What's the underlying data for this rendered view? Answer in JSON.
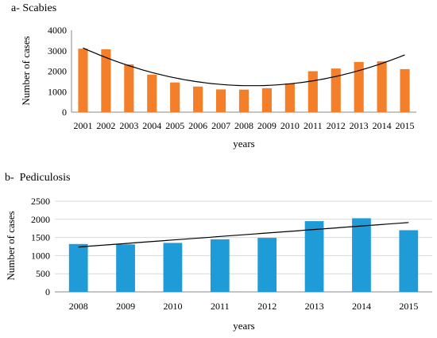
{
  "chart_data": [
    {
      "type": "bar",
      "title": "a- Scabies",
      "xlabel": "years",
      "ylabel": "Number of cases",
      "categories": [
        "2001",
        "2002",
        "2003",
        "2004",
        "2005",
        "2006",
        "2007",
        "2008",
        "2009",
        "2010",
        "2011",
        "2012",
        "2013",
        "2014",
        "2015"
      ],
      "values": [
        3100,
        3070,
        2330,
        1830,
        1450,
        1250,
        1110,
        1100,
        1170,
        1400,
        2000,
        2130,
        2450,
        2480,
        2100
      ],
      "yticks": [
        "0",
        "1000",
        "2000",
        "3000",
        "4000"
      ],
      "ylim": [
        0,
        4000
      ],
      "trendline": "polynomial",
      "bar_color": "#F47F2A",
      "grid": false
    },
    {
      "type": "bar",
      "title": "b-  Pediculosis",
      "xlabel": "years",
      "ylabel": "Number of cases",
      "categories": [
        "2008",
        "2009",
        "2010",
        "2011",
        "2012",
        "2013",
        "2014",
        "2015"
      ],
      "values": [
        1320,
        1310,
        1350,
        1450,
        1490,
        1950,
        2030,
        1700
      ],
      "yticks": [
        "0",
        "500",
        "1000",
        "1500",
        "2000",
        "2500"
      ],
      "ylim": [
        0,
        2500
      ],
      "trendline": "linear",
      "bar_color": "#1F9BD7",
      "grid": true
    }
  ]
}
